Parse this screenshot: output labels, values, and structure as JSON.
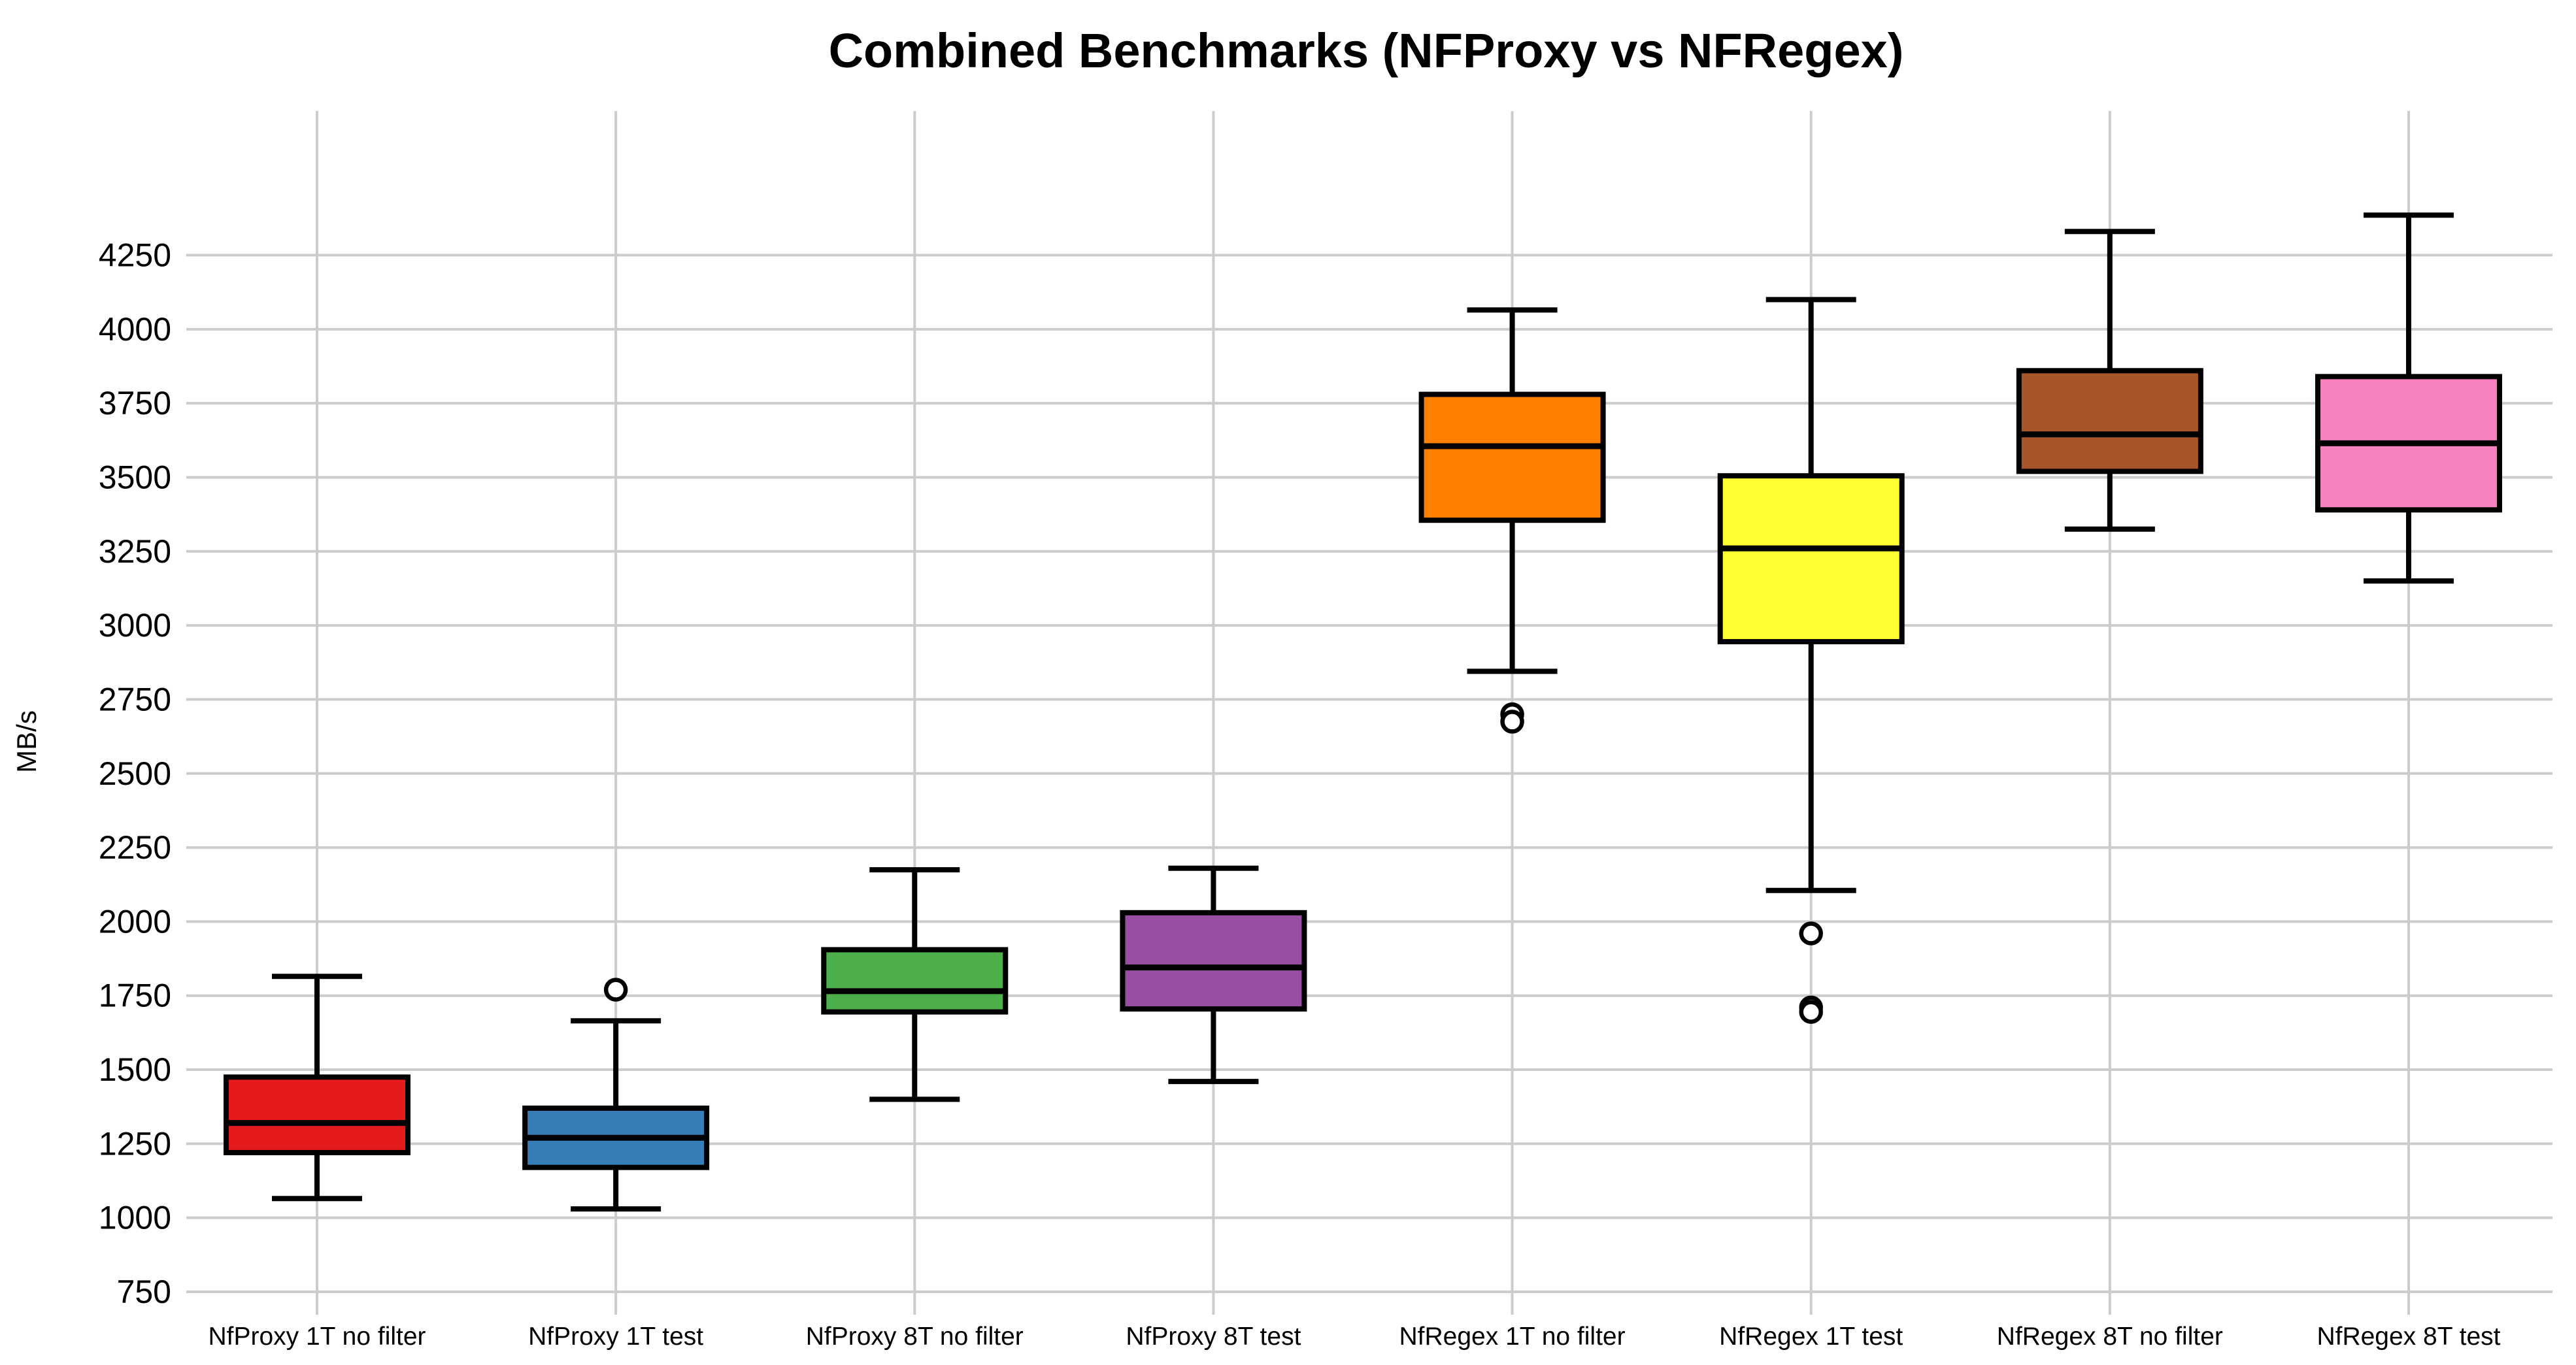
{
  "title": "Combined Benchmarks (NFProxy vs NFRegex)",
  "y_axis": {
    "label": "MB/s"
  },
  "chart_data": {
    "type": "boxplot",
    "title": "Combined Benchmarks (NFProxy vs NFRegex)",
    "xlabel": "",
    "ylabel": "MB/s",
    "grid": true,
    "grid_color": "#cccccc",
    "background_color": "#ffffff",
    "box_border_color": "#000000",
    "ylim": [
      600,
      4550
    ],
    "yticks": [
      750,
      1000,
      1250,
      1500,
      1750,
      2000,
      2250,
      2500,
      2750,
      3000,
      3250,
      3500,
      3750,
      4000,
      4250
    ],
    "categories": [
      "NfProxy 1T no filter",
      "NfProxy 1T test",
      "NfProxy 8T no filter",
      "NfProxy 8T test",
      "NfRegex 1T no filter",
      "NfRegex 1T test",
      "NfRegex 8T no filter",
      "NfRegex 8T test"
    ],
    "series": [
      {
        "name": "NfProxy 1T no filter",
        "color": "#e41a1c",
        "whisker_low": 1065,
        "q1": 1220,
        "median": 1320,
        "q3": 1475,
        "whisker_high": 1815,
        "outliers": []
      },
      {
        "name": "NfProxy 1T test",
        "color": "#377eb8",
        "whisker_low": 1030,
        "q1": 1170,
        "median": 1270,
        "q3": 1370,
        "whisker_high": 1665,
        "outliers": [
          1770
        ]
      },
      {
        "name": "NfProxy 8T no filter",
        "color": "#4daf4a",
        "whisker_low": 1400,
        "q1": 1695,
        "median": 1765,
        "q3": 1905,
        "whisker_high": 2175,
        "outliers": []
      },
      {
        "name": "NfProxy 8T test",
        "color": "#984ea3",
        "whisker_low": 1460,
        "q1": 1705,
        "median": 1845,
        "q3": 2030,
        "whisker_high": 2180,
        "outliers": []
      },
      {
        "name": "NfRegex 1T no filter",
        "color": "#ff7f00",
        "whisker_low": 2845,
        "q1": 3355,
        "median": 3605,
        "q3": 3780,
        "whisker_high": 4065,
        "outliers": [
          2700,
          2675
        ]
      },
      {
        "name": "NfRegex 1T test",
        "color": "#ffff33",
        "whisker_low": 2105,
        "q1": 2945,
        "median": 3260,
        "q3": 3505,
        "whisker_high": 4100,
        "outliers": [
          1960,
          1710,
          1695
        ]
      },
      {
        "name": "NfRegex 8T no filter",
        "color": "#a65628",
        "whisker_low": 3325,
        "q1": 3520,
        "median": 3645,
        "q3": 3860,
        "whisker_high": 4330,
        "outliers": []
      },
      {
        "name": "NfRegex 8T test",
        "color": "#f781bf",
        "whisker_low": 3150,
        "q1": 3390,
        "median": 3615,
        "q3": 3840,
        "whisker_high": 4385,
        "outliers": []
      }
    ]
  }
}
